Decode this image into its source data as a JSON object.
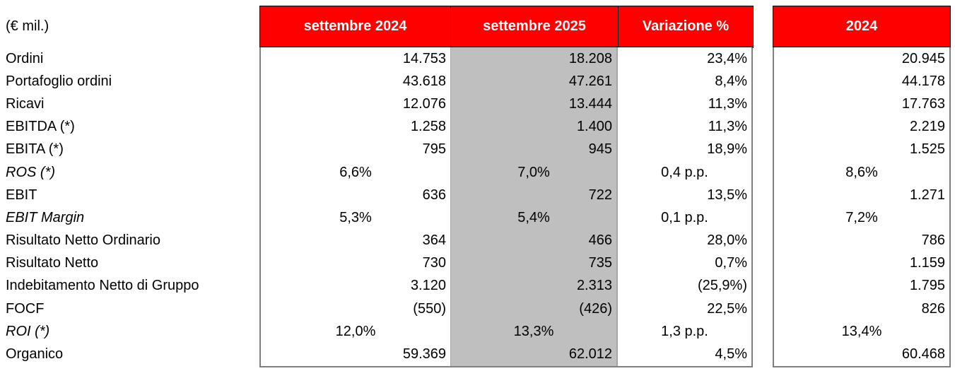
{
  "table": {
    "units_label": "(€ mil.)",
    "colors": {
      "header_bg": "#FF0000",
      "header_text": "#FFFFFF",
      "highlight_column_bg": "#BFBFBF",
      "header_border": "#000000",
      "body_border": "#808080",
      "text": "#000000"
    },
    "columns": [
      {
        "id": "sett2024",
        "label": "settembre 2024"
      },
      {
        "id": "sett2025",
        "label": "settembre 2025",
        "highlight": true
      },
      {
        "id": "variazione",
        "label": "Variazione %"
      },
      {
        "id": "fy2024",
        "label": "2024"
      }
    ],
    "rows": [
      {
        "label": "Ordini",
        "italic": false,
        "align": "right",
        "sett2024": "14.753",
        "sett2025": "18.208",
        "variazione": "23,4%",
        "fy2024": "20.945"
      },
      {
        "label": "Portafoglio ordini",
        "italic": false,
        "align": "right",
        "sett2024": "43.618",
        "sett2025": "47.261",
        "variazione": "8,4%",
        "fy2024": "44.178"
      },
      {
        "label": "Ricavi",
        "italic": false,
        "align": "right",
        "sett2024": "12.076",
        "sett2025": "13.444",
        "variazione": "11,3%",
        "fy2024": "17.763"
      },
      {
        "label": "EBITDA (*)",
        "italic": false,
        "align": "right",
        "sett2024": "1.258",
        "sett2025": "1.400",
        "variazione": "11,3%",
        "fy2024": "2.219"
      },
      {
        "label": "EBITA (*)",
        "italic": false,
        "align": "right",
        "sett2024": "795",
        "sett2025": "945",
        "variazione": "18,9%",
        "fy2024": "1.525"
      },
      {
        "label": "ROS (*)",
        "italic": true,
        "align": "center",
        "sett2024": "6,6%",
        "sett2025": "7,0%",
        "variazione": "0,4 p.p.",
        "fy2024": "8,6%"
      },
      {
        "label": "EBIT",
        "italic": false,
        "align": "right",
        "sett2024": "636",
        "sett2025": "722",
        "variazione": "13,5%",
        "fy2024": "1.271"
      },
      {
        "label": "EBIT Margin",
        "italic": true,
        "align": "center",
        "sett2024": "5,3%",
        "sett2025": "5,4%",
        "variazione": "0,1 p.p.",
        "fy2024": "7,2%"
      },
      {
        "label": "Risultato Netto Ordinario",
        "italic": false,
        "align": "right",
        "sett2024": "364",
        "sett2025": "466",
        "variazione": "28,0%",
        "fy2024": "786"
      },
      {
        "label": "Risultato Netto",
        "italic": false,
        "align": "right",
        "sett2024": "730",
        "sett2025": "735",
        "variazione": "0,7%",
        "fy2024": "1.159"
      },
      {
        "label": "Indebitamento Netto di Gruppo",
        "italic": false,
        "align": "right",
        "sett2024": "3.120",
        "sett2025": "2.313",
        "variazione": "(25,9%)",
        "fy2024": "1.795"
      },
      {
        "label": "FOCF",
        "italic": false,
        "align": "right",
        "sett2024": "(550)",
        "sett2025": "(426)",
        "variazione": "22,5%",
        "fy2024": "826"
      },
      {
        "label": "ROI (*)",
        "italic": true,
        "align": "center",
        "sett2024": "12,0%",
        "sett2025": "13,3%",
        "variazione": "1,3 p.p.",
        "fy2024": "13,4%"
      },
      {
        "label": "Organico",
        "italic": false,
        "align": "right",
        "sett2024": "59.369",
        "sett2025": "62.012",
        "variazione": "4,5%",
        "fy2024": "60.468"
      }
    ]
  }
}
